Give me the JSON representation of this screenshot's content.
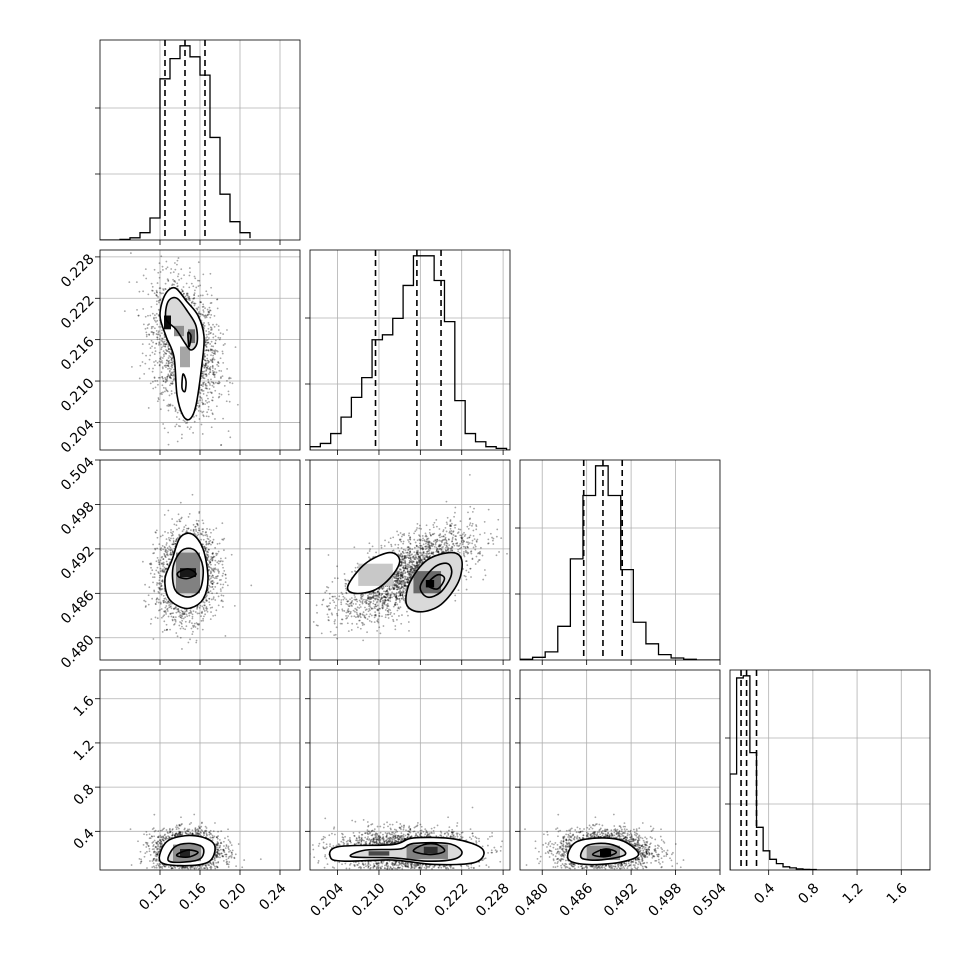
{
  "chart_data": {
    "type": "corner",
    "grid": true,
    "parameters": [
      {
        "range": [
          0.06,
          0.26
        ],
        "ticks": [
          0.12,
          0.16,
          0.2,
          0.24
        ],
        "tick_labels": [
          "0.12",
          "0.16",
          "0.20",
          "0.24"
        ],
        "quantiles": [
          0.125,
          0.145,
          0.165
        ],
        "hist": {
          "edges": [
            0.08,
            0.09,
            0.1,
            0.11,
            0.12,
            0.13,
            0.14,
            0.15,
            0.16,
            0.17,
            0.18,
            0.19,
            0.2,
            0.21
          ],
          "counts": [
            0.3,
            1.2,
            4.0,
            12.0,
            88.0,
            99.0,
            106.0,
            100.0,
            90.0,
            56.0,
            25.0,
            10.0,
            4.0,
            1.0
          ]
        }
      },
      {
        "range": [
          0.2,
          0.229
        ],
        "ticks": [
          0.204,
          0.21,
          0.216,
          0.222,
          0.228
        ],
        "tick_labels": [
          "0.204",
          "0.210",
          "0.216",
          "0.222",
          "0.228"
        ],
        "quantiles": [
          0.2095,
          0.2155,
          0.219
        ],
        "hist": {
          "edges": [
            0.2,
            0.2015,
            0.203,
            0.2045,
            0.206,
            0.2075,
            0.209,
            0.2105,
            0.212,
            0.2135,
            0.215,
            0.2165,
            0.218,
            0.2195,
            0.221,
            0.2225,
            0.224,
            0.2255,
            0.227,
            0.2285
          ],
          "counts": [
            2.0,
            4.0,
            10.0,
            20.0,
            32.0,
            44.0,
            67.0,
            70.0,
            80.0,
            100.0,
            118.0,
            118.0,
            103.0,
            78.0,
            30.0,
            10.0,
            5.0,
            2.0,
            1.0
          ]
        }
      },
      {
        "range": [
          0.477,
          0.504
        ],
        "ticks": [
          0.48,
          0.486,
          0.492,
          0.498,
          0.504
        ],
        "tick_labels": [
          "0.480",
          "0.486",
          "0.492",
          "0.498",
          "0.504"
        ],
        "quantiles": [
          0.4856,
          0.4882,
          0.4908
        ],
        "hist": {
          "edges": [
            0.477,
            0.4787,
            0.4804,
            0.4821,
            0.4838,
            0.4855,
            0.4872,
            0.4889,
            0.4906,
            0.4923,
            0.494,
            0.4957,
            0.4974,
            0.4991,
            0.5008
          ],
          "counts": [
            0.5,
            2.0,
            6.0,
            25.0,
            75.0,
            122.0,
            144.0,
            122.0,
            67.0,
            28.0,
            12.0,
            4.0,
            1.5,
            0.5
          ]
        }
      },
      {
        "range": [
          0.05,
          1.86
        ],
        "ticks": [
          0.4,
          0.8,
          1.2,
          1.6
        ],
        "tick_labels": [
          "0.4",
          "0.8",
          "1.2",
          "1.6"
        ],
        "quantiles": [
          0.15,
          0.2,
          0.29
        ],
        "hist": {
          "edges": [
            0.05,
            0.11,
            0.17,
            0.23,
            0.29,
            0.35,
            0.41,
            0.47,
            0.53,
            0.59,
            0.65,
            0.71,
            0.77,
            0.83
          ],
          "counts": [
            90.0,
            180.0,
            182.0,
            110.0,
            40.0,
            18.0,
            10.0,
            6.0,
            3.0,
            2.0,
            1.0,
            0.6,
            0.4
          ]
        }
      }
    ],
    "pairs": [
      {
        "row": 1,
        "col": 0,
        "cloud": {
          "center": [
            0.145,
            0.215
          ],
          "spread": [
            0.016,
            0.0047
          ],
          "corr": -0.25,
          "points": 2200
        },
        "contours": [
          [
            [
              0.125,
              0.2225
            ],
            [
              0.135,
              0.2235
            ],
            [
              0.147,
              0.2215
            ],
            [
              0.158,
              0.2195
            ],
            [
              0.164,
              0.2165
            ],
            [
              0.162,
              0.2125
            ],
            [
              0.156,
              0.2065
            ],
            [
              0.15,
              0.2045
            ],
            [
              0.143,
              0.205
            ],
            [
              0.137,
              0.208
            ],
            [
              0.134,
              0.2135
            ],
            [
              0.126,
              0.2165
            ],
            [
              0.12,
              0.2195
            ]
          ],
          [
            [
              0.128,
              0.2215
            ],
            [
              0.137,
              0.222
            ],
            [
              0.148,
              0.22
            ],
            [
              0.156,
              0.218
            ],
            [
              0.157,
              0.2155
            ],
            [
              0.151,
              0.2145
            ],
            [
              0.145,
              0.2155
            ],
            [
              0.136,
              0.2175
            ],
            [
              0.126,
              0.219
            ]
          ],
          [
            [
              0.143,
              0.211
            ],
            [
              0.146,
              0.21
            ],
            [
              0.145,
              0.2085
            ],
            [
              0.142,
              0.209
            ]
          ],
          [
            [
              0.148,
              0.217
            ],
            [
              0.151,
              0.2165
            ],
            [
              0.149,
              0.215
            ]
          ]
        ],
        "cells": [
          {
            "x": 0.124,
            "y": 0.2175,
            "w": 0.007,
            "h": 0.002,
            "shade": 0.05
          },
          {
            "x": 0.148,
            "y": 0.2155,
            "w": 0.007,
            "h": 0.002,
            "shade": 0.45
          },
          {
            "x": 0.134,
            "y": 0.2165,
            "w": 0.01,
            "h": 0.0015,
            "shade": 0.6
          },
          {
            "x": 0.14,
            "y": 0.212,
            "w": 0.01,
            "h": 0.003,
            "shade": 0.7
          }
        ]
      },
      {
        "row": 2,
        "col": 0,
        "cloud": {
          "center": [
            0.147,
            0.4885
          ],
          "spread": [
            0.015,
            0.003
          ],
          "corr": 0.1,
          "points": 2200
        },
        "contours": [
          [
            [
              0.132,
              0.4905
            ],
            [
              0.14,
              0.4935
            ],
            [
              0.152,
              0.494
            ],
            [
              0.163,
              0.492
            ],
            [
              0.168,
              0.488
            ],
            [
              0.163,
              0.4852
            ],
            [
              0.15,
              0.484
            ],
            [
              0.138,
              0.4843
            ],
            [
              0.128,
              0.4855
            ],
            [
              0.125,
              0.488
            ]
          ],
          [
            [
              0.133,
              0.4895
            ],
            [
              0.142,
              0.4918
            ],
            [
              0.155,
              0.4918
            ],
            [
              0.163,
              0.4895
            ],
            [
              0.16,
              0.4865
            ],
            [
              0.148,
              0.4855
            ],
            [
              0.135,
              0.4865
            ]
          ],
          [
            [
              0.138,
              0.4888
            ],
            [
              0.148,
              0.4893
            ],
            [
              0.156,
              0.4886
            ],
            [
              0.148,
              0.488
            ],
            [
              0.139,
              0.4882
            ]
          ]
        ],
        "cells": [
          {
            "x": 0.14,
            "y": 0.4882,
            "w": 0.016,
            "h": 0.0012,
            "shade": 0.1
          },
          {
            "x": 0.136,
            "y": 0.486,
            "w": 0.024,
            "h": 0.0055,
            "shade": 0.55
          }
        ]
      },
      {
        "row": 2,
        "col": 1,
        "cloud": {
          "center": [
            0.214,
            0.4885
          ],
          "spread": [
            0.0048,
            0.003
          ],
          "corr": 0.65,
          "points": 2400
        },
        "contours": [
          [
            [
              0.2055,
              0.487
            ],
            [
              0.208,
              0.49
            ],
            [
              0.2115,
              0.4915
            ],
            [
              0.213,
              0.4905
            ],
            [
              0.212,
              0.4885
            ],
            [
              0.2095,
              0.4865
            ],
            [
              0.2065,
              0.486
            ]
          ],
          [
            [
              0.2145,
              0.4875
            ],
            [
              0.217,
              0.4905
            ],
            [
              0.2205,
              0.4915
            ],
            [
              0.222,
              0.4905
            ],
            [
              0.2215,
              0.4875
            ],
            [
              0.219,
              0.4845
            ],
            [
              0.216,
              0.4835
            ],
            [
              0.214,
              0.4845
            ]
          ],
          [
            [
              0.216,
              0.487
            ],
            [
              0.218,
              0.4895
            ],
            [
              0.22,
              0.49
            ],
            [
              0.2205,
              0.4885
            ],
            [
              0.219,
              0.4862
            ],
            [
              0.217,
              0.4855
            ]
          ],
          [
            [
              0.217,
              0.4872
            ],
            [
              0.2185,
              0.4885
            ],
            [
              0.2195,
              0.488
            ],
            [
              0.2185,
              0.4866
            ]
          ]
        ],
        "cells": [
          {
            "x": 0.2168,
            "y": 0.4868,
            "w": 0.0012,
            "h": 0.001,
            "shade": 0.0
          },
          {
            "x": 0.215,
            "y": 0.486,
            "w": 0.004,
            "h": 0.003,
            "shade": 0.45
          },
          {
            "x": 0.207,
            "y": 0.487,
            "w": 0.005,
            "h": 0.003,
            "shade": 0.85
          }
        ]
      },
      {
        "row": 3,
        "col": 0,
        "cloud": {
          "center": [
            0.148,
            0.22
          ],
          "spread": [
            0.017,
            0.09
          ],
          "corr": 0.0,
          "points": 2200
        },
        "contours": [
          [
            [
              0.12,
              0.13
            ],
            [
              0.126,
              0.3
            ],
            [
              0.145,
              0.36
            ],
            [
              0.165,
              0.34
            ],
            [
              0.175,
              0.26
            ],
            [
              0.168,
              0.12
            ],
            [
              0.14,
              0.09
            ]
          ],
          [
            [
              0.128,
              0.14
            ],
            [
              0.135,
              0.26
            ],
            [
              0.15,
              0.29
            ],
            [
              0.163,
              0.25
            ],
            [
              0.16,
              0.15
            ],
            [
              0.14,
              0.12
            ]
          ],
          [
            [
              0.137,
              0.19
            ],
            [
              0.148,
              0.23
            ],
            [
              0.158,
              0.21
            ],
            [
              0.15,
              0.17
            ],
            [
              0.14,
              0.17
            ]
          ]
        ],
        "cells": [
          {
            "x": 0.14,
            "y": 0.17,
            "w": 0.01,
            "h": 0.07,
            "shade": 0.15
          },
          {
            "x": 0.133,
            "y": 0.13,
            "w": 0.028,
            "h": 0.15,
            "shade": 0.6
          }
        ]
      },
      {
        "row": 3,
        "col": 1,
        "cloud": {
          "center": [
            0.214,
            0.22
          ],
          "spread": [
            0.005,
            0.09
          ],
          "corr": 0.0,
          "points": 2400
        },
        "contours": [
          [
            [
              0.203,
              0.16
            ],
            [
              0.204,
              0.26
            ],
            [
              0.212,
              0.28
            ],
            [
              0.215,
              0.34
            ],
            [
              0.221,
              0.33
            ],
            [
              0.225,
              0.24
            ],
            [
              0.224,
              0.12
            ],
            [
              0.218,
              0.1
            ],
            [
              0.212,
              0.14
            ],
            [
              0.205,
              0.13
            ]
          ],
          [
            [
              0.206,
              0.17
            ],
            [
              0.208,
              0.23
            ],
            [
              0.213,
              0.24
            ],
            [
              0.215,
              0.29
            ],
            [
              0.22,
              0.29
            ],
            [
              0.222,
              0.22
            ],
            [
              0.221,
              0.15
            ],
            [
              0.217,
              0.13
            ],
            [
              0.212,
              0.16
            ]
          ],
          [
            [
              0.215,
              0.22
            ],
            [
              0.2165,
              0.28
            ],
            [
              0.2185,
              0.28
            ],
            [
              0.2195,
              0.22
            ],
            [
              0.2175,
              0.19
            ]
          ]
        ],
        "cells": [
          {
            "x": 0.2165,
            "y": 0.2,
            "w": 0.002,
            "h": 0.06,
            "shade": 0.2
          },
          {
            "x": 0.2085,
            "y": 0.18,
            "w": 0.003,
            "h": 0.04,
            "shade": 0.3
          },
          {
            "x": 0.214,
            "y": 0.15,
            "w": 0.006,
            "h": 0.13,
            "shade": 0.55
          }
        ]
      },
      {
        "row": 3,
        "col": 2,
        "cloud": {
          "center": [
            0.4885,
            0.22
          ],
          "spread": [
            0.0032,
            0.09
          ],
          "corr": 0.0,
          "points": 2200
        },
        "contours": [
          [
            [
              0.4835,
              0.15
            ],
            [
              0.4845,
              0.3
            ],
            [
              0.488,
              0.34
            ],
            [
              0.491,
              0.31
            ],
            [
              0.493,
              0.19
            ],
            [
              0.4905,
              0.12
            ],
            [
              0.486,
              0.1
            ]
          ],
          [
            [
              0.4852,
              0.17
            ],
            [
              0.486,
              0.27
            ],
            [
              0.4885,
              0.29
            ],
            [
              0.4905,
              0.25
            ],
            [
              0.4912,
              0.19
            ],
            [
              0.489,
              0.15
            ],
            [
              0.4865,
              0.14
            ]
          ],
          [
            [
              0.4868,
              0.19
            ],
            [
              0.4885,
              0.24
            ],
            [
              0.49,
              0.21
            ],
            [
              0.4885,
              0.17
            ]
          ]
        ],
        "cells": [
          {
            "x": 0.4878,
            "y": 0.17,
            "w": 0.0015,
            "h": 0.07,
            "shade": 0.0
          },
          {
            "x": 0.486,
            "y": 0.14,
            "w": 0.0045,
            "h": 0.13,
            "shade": 0.6
          }
        ]
      }
    ]
  }
}
